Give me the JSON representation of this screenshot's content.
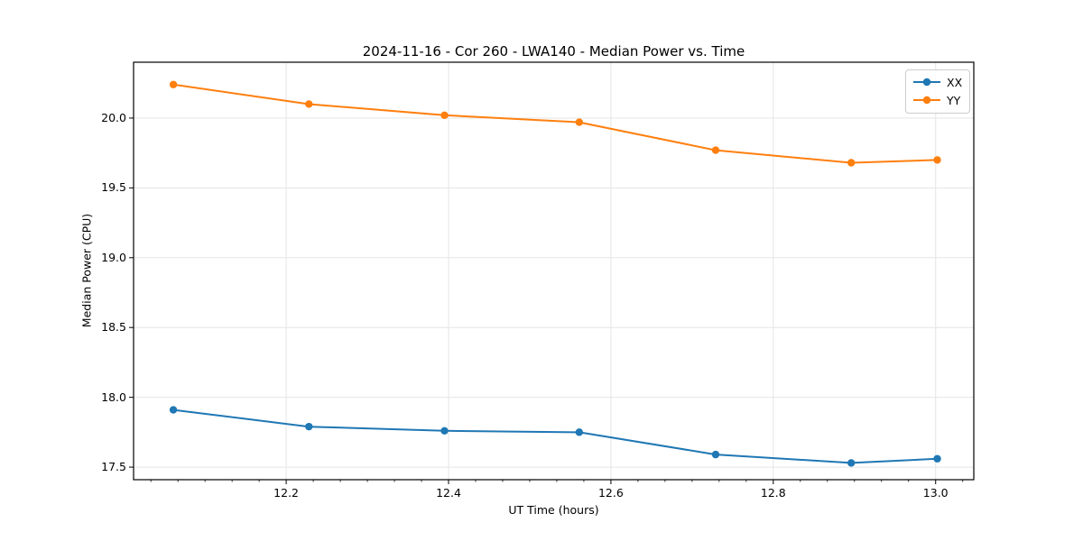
{
  "chart_data": {
    "type": "line",
    "title": "2024-11-16 - Cor 260 - LWA140 - Median Power vs. Time",
    "xlabel": "UT Time (hours)",
    "ylabel": "Median Power (CPU)",
    "x": [
      12.061,
      12.228,
      12.395,
      12.561,
      12.729,
      12.896,
      13.002
    ],
    "series": [
      {
        "name": "XX",
        "color": "#1f77b4",
        "values": [
          17.91,
          17.79,
          17.76,
          17.75,
          17.59,
          17.53,
          17.56
        ]
      },
      {
        "name": "YY",
        "color": "#ff7f0e",
        "values": [
          20.24,
          20.1,
          20.02,
          19.97,
          19.77,
          19.68,
          19.7
        ]
      }
    ],
    "xlim": [
      12.012,
      13.047
    ],
    "ylim": [
      17.41,
      20.4
    ],
    "x_ticks": [
      12.2,
      12.4,
      12.6,
      12.8,
      13.0
    ],
    "y_ticks": [
      17.5,
      18.0,
      18.5,
      19.0,
      19.5,
      20.0
    ],
    "x_minor_divisions": 6,
    "grid": true,
    "grid_color": "#e5e5e5",
    "axis_color": "#000000",
    "legend_position": "upper right",
    "marker": "circle",
    "tick_label_decimals": 1
  }
}
